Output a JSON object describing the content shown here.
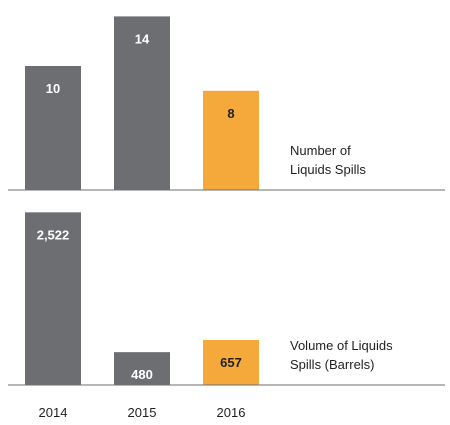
{
  "chart_data": [
    {
      "type": "bar",
      "values": [
        10,
        14,
        8
      ],
      "colors": [
        "#6d6e71",
        "#6d6e71",
        "#f5a93a"
      ],
      "label_colors": [
        "#ffffff",
        "#ffffff",
        "#231f20"
      ],
      "ylim": [
        0,
        15
      ],
      "annotation": [
        "Number of",
        "Liquids Spills"
      ]
    },
    {
      "type": "bar",
      "categories": [
        "2014",
        "2015",
        "2016"
      ],
      "values": [
        2522,
        480,
        657
      ],
      "value_labels": [
        "2,522",
        "480",
        "657"
      ],
      "colors": [
        "#6d6e71",
        "#6d6e71",
        "#f5a93a"
      ],
      "label_colors": [
        "#ffffff",
        "#ffffff",
        "#231f20"
      ],
      "ylim": [
        0,
        2600
      ],
      "annotation": [
        "Volume of Liquids",
        "Spills (Barrels)"
      ]
    }
  ]
}
